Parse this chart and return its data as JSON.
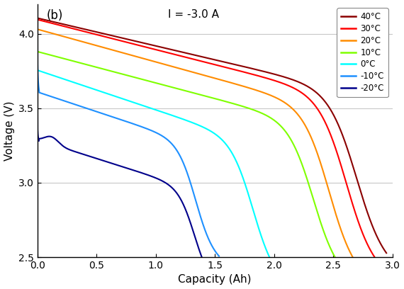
{
  "title_text": "I = -3.0 A",
  "label_b": "(b)",
  "xlabel": "Capacity (Ah)",
  "ylabel": "Voltage (V)",
  "xlim": [
    0,
    3.0
  ],
  "ylim": [
    2.5,
    4.2
  ],
  "yticks": [
    2.5,
    3.0,
    3.5,
    4.0
  ],
  "xticks": [
    0,
    0.5,
    1.0,
    1.5,
    2.0,
    2.5,
    3.0
  ],
  "temperatures": [
    "40°C",
    "30°C",
    "20°C",
    "10°C",
    "0°C",
    "-10°C",
    "-20°C"
  ],
  "colors": [
    "#8B0000",
    "#FF0000",
    "#FF8C00",
    "#7FFF00",
    "#00FFFF",
    "#1E90FF",
    "#00008B"
  ],
  "background": "#FFFFFF",
  "grid_color": "#C8C8C8"
}
